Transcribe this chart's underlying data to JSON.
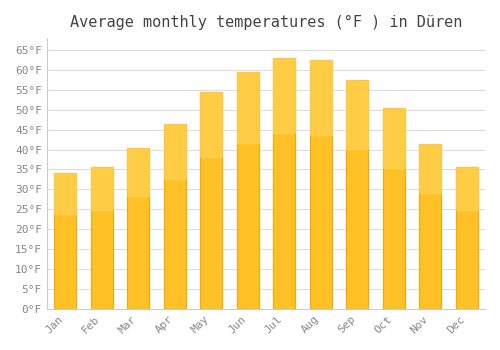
{
  "title": "Average monthly temperatures (°F ) in Düren",
  "months": [
    "Jan",
    "Feb",
    "Mar",
    "Apr",
    "May",
    "Jun",
    "Jul",
    "Aug",
    "Sep",
    "Oct",
    "Nov",
    "Dec"
  ],
  "values": [
    34,
    35.5,
    40.5,
    46.5,
    54.5,
    59.5,
    63,
    62.5,
    57.5,
    50.5,
    41.5,
    35.5
  ],
  "bar_color_face": "#FFC125",
  "bar_color_edge": "#FFA500",
  "background_color": "#FFFFFF",
  "grid_color": "#DDDDDD",
  "yticks": [
    0,
    5,
    10,
    15,
    20,
    25,
    30,
    35,
    40,
    45,
    50,
    55,
    60,
    65
  ],
  "ylim": [
    0,
    68
  ],
  "title_fontsize": 11,
  "tick_fontsize": 8,
  "tick_color": "#888888",
  "spine_color": "#CCCCCC"
}
